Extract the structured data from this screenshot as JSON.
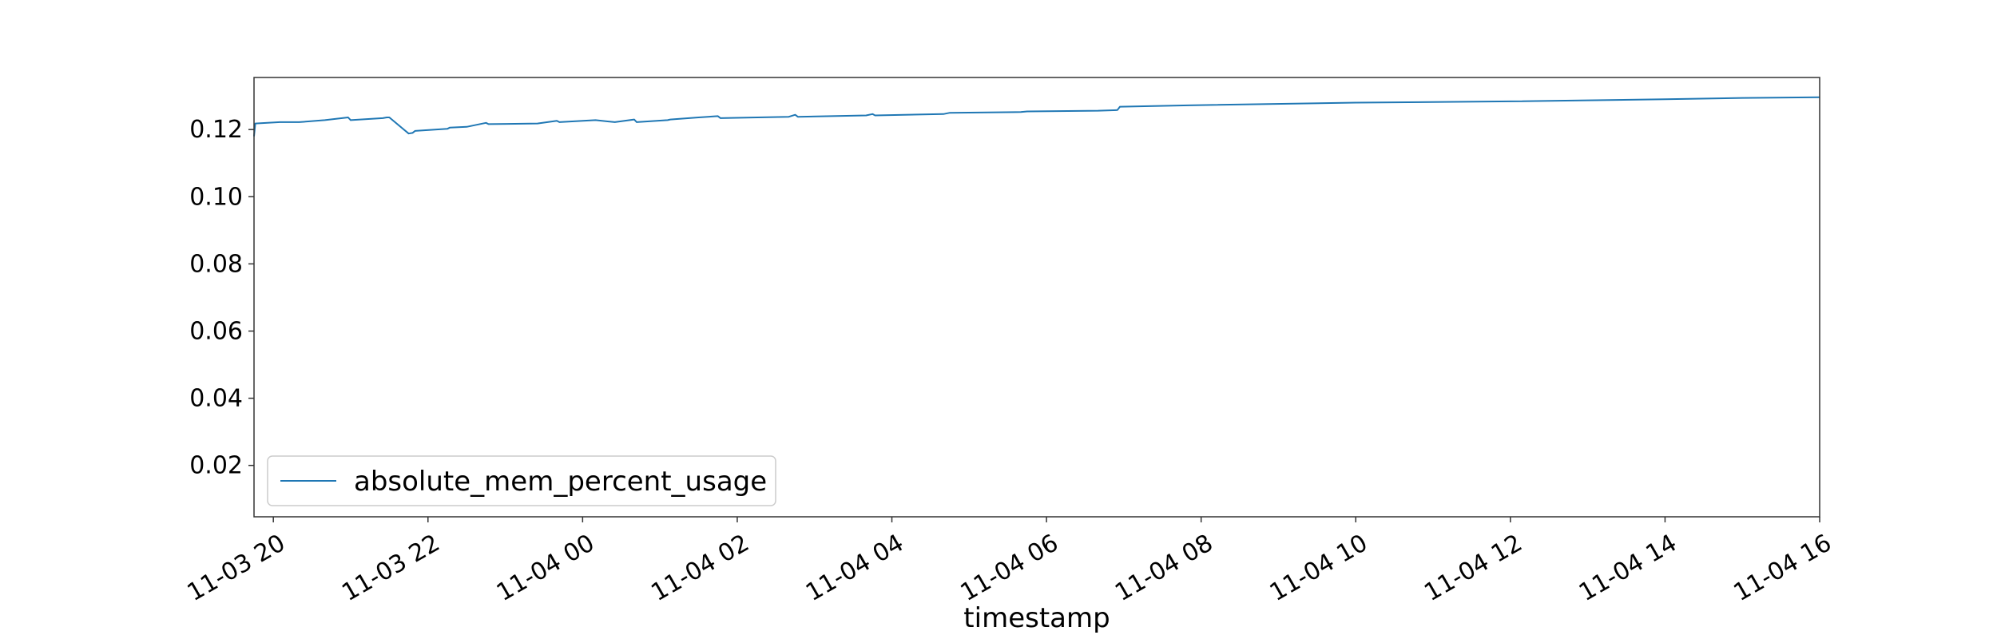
{
  "chart_data": {
    "type": "line",
    "title": "",
    "xlabel": "timestamp",
    "ylabel": "",
    "x_type": "datetime",
    "xlim": [
      "2023-11-03T19:45:00",
      "2023-11-04T16:00:00"
    ],
    "ylim": [
      0.0047,
      0.1355
    ],
    "x_ticks": [
      {
        "value": "2023-11-03T20:00:00",
        "label": "11-03 20"
      },
      {
        "value": "2023-11-03T22:00:00",
        "label": "11-03 22"
      },
      {
        "value": "2023-11-04T00:00:00",
        "label": "11-04 00"
      },
      {
        "value": "2023-11-04T02:00:00",
        "label": "11-04 02"
      },
      {
        "value": "2023-11-04T04:00:00",
        "label": "11-04 04"
      },
      {
        "value": "2023-11-04T06:00:00",
        "label": "11-04 06"
      },
      {
        "value": "2023-11-04T08:00:00",
        "label": "11-04 08"
      },
      {
        "value": "2023-11-04T10:00:00",
        "label": "11-04 10"
      },
      {
        "value": "2023-11-04T12:00:00",
        "label": "11-04 12"
      },
      {
        "value": "2023-11-04T14:00:00",
        "label": "11-04 14"
      },
      {
        "value": "2023-11-04T16:00:00",
        "label": "11-04 16"
      }
    ],
    "y_ticks": [
      {
        "value": 0.02,
        "label": "0.02"
      },
      {
        "value": 0.04,
        "label": "0.04"
      },
      {
        "value": 0.06,
        "label": "0.06"
      },
      {
        "value": 0.08,
        "label": "0.08"
      },
      {
        "value": 0.1,
        "label": "0.10"
      },
      {
        "value": 0.12,
        "label": "0.12"
      }
    ],
    "grid": false,
    "legend": {
      "placement": "lower-left"
    },
    "colors": {
      "series": "#1f77b4",
      "axes": "#333333",
      "text": "#000000"
    },
    "series": [
      {
        "name": "absolute_mem_percent_usage",
        "x": [
          "2023-11-03T19:45:00",
          "2023-11-03T19:46:00",
          "2023-11-03T20:05:00",
          "2023-11-03T20:20:00",
          "2023-11-03T20:40:00",
          "2023-11-03T20:58:00",
          "2023-11-03T21:00:00",
          "2023-11-03T21:25:00",
          "2023-11-03T21:28:00",
          "2023-11-03T21:30:00",
          "2023-11-03T21:45:00",
          "2023-11-03T21:48:00",
          "2023-11-03T21:50:00",
          "2023-11-03T22:15:00",
          "2023-11-03T22:17:00",
          "2023-11-03T22:30:00",
          "2023-11-03T22:45:00",
          "2023-11-03T22:47:00",
          "2023-11-03T23:25:00",
          "2023-11-03T23:40:00",
          "2023-11-03T23:42:00",
          "2023-11-04T00:10:00",
          "2023-11-04T00:25:00",
          "2023-11-04T00:40:00",
          "2023-11-04T00:42:00",
          "2023-11-04T01:06:00",
          "2023-11-04T01:08:00",
          "2023-11-04T01:30:00",
          "2023-11-04T01:45:00",
          "2023-11-04T01:47:00",
          "2023-11-04T02:40:00",
          "2023-11-04T02:45:00",
          "2023-11-04T02:47:00",
          "2023-11-04T03:40:00",
          "2023-11-04T03:45:00",
          "2023-11-04T03:47:00",
          "2023-11-04T04:40:00",
          "2023-11-04T04:45:00",
          "2023-11-04T05:40:00",
          "2023-11-04T05:45:00",
          "2023-11-04T06:40:00",
          "2023-11-04T06:55:00",
          "2023-11-04T06:57:00",
          "2023-11-04T07:50:00",
          "2023-11-04T10:00:00",
          "2023-11-04T12:00:00",
          "2023-11-04T14:00:00",
          "2023-11-04T15:00:00",
          "2023-11-04T16:00:00"
        ],
        "y": [
          0.118,
          0.1218,
          0.1222,
          0.1222,
          0.1228,
          0.1236,
          0.1228,
          0.1234,
          0.1236,
          0.1236,
          0.1188,
          0.119,
          0.1196,
          0.1202,
          0.1206,
          0.1208,
          0.122,
          0.1216,
          0.1218,
          0.1226,
          0.1222,
          0.1228,
          0.1222,
          0.123,
          0.1222,
          0.1228,
          0.123,
          0.1236,
          0.124,
          0.1234,
          0.1238,
          0.1244,
          0.1238,
          0.1242,
          0.1246,
          0.1242,
          0.1246,
          0.125,
          0.1252,
          0.1254,
          0.1256,
          0.1258,
          0.1268,
          0.1272,
          0.128,
          0.1284,
          0.129,
          0.1294,
          0.1296
        ]
      }
    ]
  }
}
